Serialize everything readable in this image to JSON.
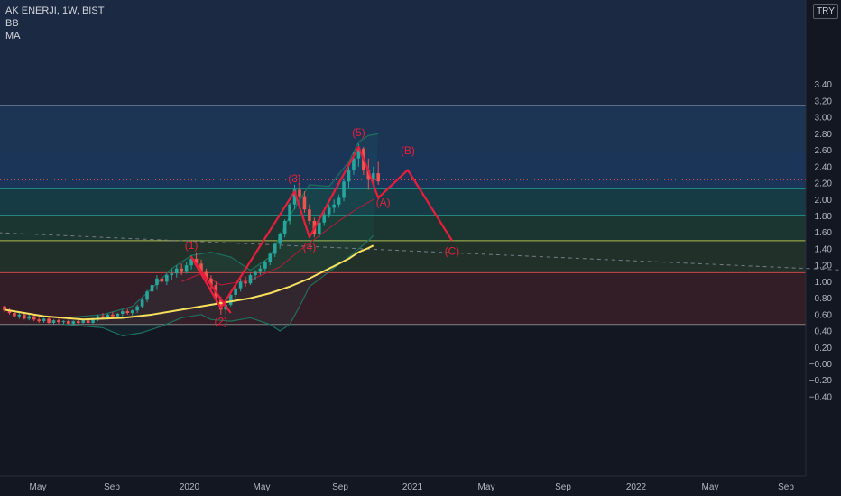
{
  "header": {
    "symbol_line": "AK ENERJI, 1W, BIST",
    "indicators": [
      "BB",
      "MA"
    ],
    "currency": "TRY"
  },
  "colors": {
    "background": "#131722",
    "candle_up": "#26a69a",
    "candle_down": "#ef5350",
    "wave": "#e91e3c",
    "ma": "#f6e05e",
    "bb": "#1f6f5f"
  },
  "chart_data": {
    "type": "candlestick",
    "y_range": [
      -0.4,
      3.4
    ],
    "y_ticks": [
      "3.40",
      "3.20",
      "3.00",
      "2.80",
      "2.60",
      "2.40",
      "2.20",
      "2.00",
      "1.80",
      "1.60",
      "1.40",
      "1.20",
      "1.00",
      "0.80",
      "0.60",
      "0.40",
      "0.20",
      "−0.00",
      "−0.20",
      "−0.40"
    ],
    "x_ticks": [
      "May",
      "Sep",
      "2020",
      "May",
      "Sep",
      "2021",
      "May",
      "Sep",
      "2022",
      "May",
      "Sep"
    ],
    "fib_levels": [
      {
        "value": 3.15,
        "fill": "#1f3b5e"
      },
      {
        "value": 2.58,
        "fill": "#1d3b63"
      },
      {
        "value": 2.13,
        "fill": "#19424a"
      },
      {
        "value": 1.81,
        "fill": "#1d3b33"
      },
      {
        "value": 1.5,
        "fill": "#24362c"
      },
      {
        "value": 1.11,
        "fill": "#3a1f27"
      },
      {
        "value": 0.48,
        "fill": ""
      }
    ],
    "current_price": 2.24,
    "candles": [
      [
        0.7,
        0.71,
        0.63,
        0.65
      ],
      [
        0.65,
        0.68,
        0.6,
        0.62
      ],
      [
        0.62,
        0.64,
        0.57,
        0.58
      ],
      [
        0.58,
        0.62,
        0.55,
        0.6
      ],
      [
        0.6,
        0.61,
        0.54,
        0.55
      ],
      [
        0.55,
        0.6,
        0.53,
        0.58
      ],
      [
        0.58,
        0.59,
        0.52,
        0.54
      ],
      [
        0.54,
        0.56,
        0.5,
        0.52
      ],
      [
        0.52,
        0.56,
        0.5,
        0.55
      ],
      [
        0.55,
        0.57,
        0.49,
        0.5
      ],
      [
        0.5,
        0.54,
        0.48,
        0.53
      ],
      [
        0.53,
        0.55,
        0.49,
        0.51
      ],
      [
        0.51,
        0.53,
        0.48,
        0.52
      ],
      [
        0.52,
        0.54,
        0.48,
        0.49
      ],
      [
        0.49,
        0.53,
        0.47,
        0.52
      ],
      [
        0.52,
        0.55,
        0.49,
        0.5
      ],
      [
        0.5,
        0.54,
        0.49,
        0.53
      ],
      [
        0.53,
        0.55,
        0.49,
        0.5
      ],
      [
        0.5,
        0.56,
        0.49,
        0.55
      ],
      [
        0.55,
        0.6,
        0.52,
        0.58
      ],
      [
        0.58,
        0.62,
        0.54,
        0.56
      ],
      [
        0.56,
        0.61,
        0.54,
        0.6
      ],
      [
        0.6,
        0.63,
        0.56,
        0.58
      ],
      [
        0.58,
        0.62,
        0.55,
        0.61
      ],
      [
        0.61,
        0.66,
        0.58,
        0.64
      ],
      [
        0.64,
        0.67,
        0.6,
        0.62
      ],
      [
        0.62,
        0.66,
        0.59,
        0.65
      ],
      [
        0.65,
        0.72,
        0.62,
        0.7
      ],
      [
        0.7,
        0.8,
        0.68,
        0.78
      ],
      [
        0.78,
        0.9,
        0.75,
        0.88
      ],
      [
        0.88,
        1.0,
        0.85,
        0.96
      ],
      [
        0.96,
        1.08,
        0.9,
        1.04
      ],
      [
        1.04,
        1.12,
        0.98,
        1.0
      ],
      [
        1.0,
        1.1,
        0.96,
        1.08
      ],
      [
        1.08,
        1.16,
        1.02,
        1.1
      ],
      [
        1.1,
        1.2,
        1.05,
        1.16
      ],
      [
        1.16,
        1.22,
        1.08,
        1.12
      ],
      [
        1.12,
        1.24,
        1.1,
        1.2
      ],
      [
        1.2,
        1.32,
        1.15,
        1.28
      ],
      [
        1.28,
        1.36,
        1.18,
        1.22
      ],
      [
        1.22,
        1.27,
        1.08,
        1.12
      ],
      [
        1.12,
        1.16,
        1.0,
        1.04
      ],
      [
        1.04,
        1.08,
        0.9,
        0.96
      ],
      [
        0.96,
        1.0,
        0.72,
        0.78
      ],
      [
        0.78,
        0.82,
        0.6,
        0.66
      ],
      [
        0.66,
        0.74,
        0.6,
        0.72
      ],
      [
        0.72,
        0.86,
        0.7,
        0.84
      ],
      [
        0.84,
        0.96,
        0.8,
        0.92
      ],
      [
        0.92,
        1.04,
        0.88,
        1.0
      ],
      [
        1.0,
        1.06,
        0.94,
        0.98
      ],
      [
        0.98,
        1.1,
        0.96,
        1.08
      ],
      [
        1.08,
        1.14,
        1.02,
        1.12
      ],
      [
        1.12,
        1.2,
        1.08,
        1.16
      ],
      [
        1.16,
        1.26,
        1.12,
        1.24
      ],
      [
        1.24,
        1.36,
        1.2,
        1.34
      ],
      [
        1.34,
        1.48,
        1.3,
        1.46
      ],
      [
        1.46,
        1.6,
        1.4,
        1.58
      ],
      [
        1.58,
        1.76,
        1.54,
        1.74
      ],
      [
        1.74,
        1.96,
        1.7,
        1.94
      ],
      [
        1.94,
        2.18,
        1.88,
        2.12
      ],
      [
        2.12,
        2.3,
        2.0,
        2.04
      ],
      [
        2.04,
        2.1,
        1.84,
        1.88
      ],
      [
        1.88,
        1.94,
        1.7,
        1.74
      ],
      [
        1.74,
        1.78,
        1.54,
        1.58
      ],
      [
        1.58,
        1.76,
        1.54,
        1.72
      ],
      [
        1.72,
        1.86,
        1.68,
        1.82
      ],
      [
        1.82,
        1.94,
        1.78,
        1.9
      ],
      [
        1.9,
        2.0,
        1.84,
        1.94
      ],
      [
        1.94,
        2.06,
        1.9,
        2.02
      ],
      [
        2.02,
        2.26,
        1.98,
        2.22
      ],
      [
        2.22,
        2.4,
        2.14,
        2.36
      ],
      [
        2.36,
        2.58,
        2.3,
        2.5
      ],
      [
        2.5,
        2.68,
        2.4,
        2.62
      ],
      [
        2.62,
        2.64,
        2.3,
        2.36
      ],
      [
        2.36,
        2.5,
        2.12,
        2.24
      ],
      [
        2.24,
        2.4,
        2.16,
        2.32
      ],
      [
        2.32,
        2.46,
        2.18,
        2.22
      ]
    ],
    "ma": [
      [
        0,
        0.66
      ],
      [
        8,
        0.58
      ],
      [
        16,
        0.54
      ],
      [
        24,
        0.56
      ],
      [
        30,
        0.6
      ],
      [
        36,
        0.66
      ],
      [
        42,
        0.72
      ],
      [
        46,
        0.76
      ],
      [
        50,
        0.8
      ],
      [
        54,
        0.86
      ],
      [
        58,
        0.94
      ],
      [
        62,
        1.04
      ],
      [
        66,
        1.16
      ],
      [
        70,
        1.28
      ],
      [
        72,
        1.36
      ],
      [
        74,
        1.41
      ],
      [
        75,
        1.44
      ]
    ],
    "bb_upper": [
      [
        12,
        0.56
      ],
      [
        20,
        0.6
      ],
      [
        26,
        0.7
      ],
      [
        30,
        0.92
      ],
      [
        34,
        1.16
      ],
      [
        38,
        1.32
      ],
      [
        42,
        1.36
      ],
      [
        46,
        1.3
      ],
      [
        50,
        1.14
      ],
      [
        54,
        1.3
      ],
      [
        58,
        1.8
      ],
      [
        62,
        2.18
      ],
      [
        66,
        2.16
      ],
      [
        70,
        2.46
      ],
      [
        72,
        2.7
      ],
      [
        74,
        2.78
      ],
      [
        76,
        2.8
      ]
    ],
    "bb_lower": [
      [
        12,
        0.48
      ],
      [
        20,
        0.44
      ],
      [
        24,
        0.34
      ],
      [
        28,
        0.38
      ],
      [
        32,
        0.46
      ],
      [
        36,
        0.56
      ],
      [
        40,
        0.6
      ],
      [
        42,
        0.54
      ],
      [
        46,
        0.52
      ],
      [
        50,
        0.56
      ],
      [
        54,
        0.48
      ],
      [
        56,
        0.4
      ],
      [
        58,
        0.48
      ],
      [
        60,
        0.7
      ],
      [
        62,
        0.94
      ],
      [
        66,
        1.12
      ],
      [
        70,
        1.3
      ],
      [
        74,
        1.5
      ],
      [
        75,
        1.56
      ]
    ],
    "bb_basis": [
      [
        36,
        1.0
      ],
      [
        40,
        1.1
      ],
      [
        44,
        0.96
      ],
      [
        50,
        1.02
      ],
      [
        56,
        1.18
      ],
      [
        60,
        1.38
      ],
      [
        64,
        1.56
      ],
      [
        68,
        1.74
      ],
      [
        72,
        1.9
      ],
      [
        75,
        2.0
      ]
    ],
    "trendline": [
      [
        -10,
        1.62
      ],
      [
        175,
        1.13
      ]
    ],
    "wave_path": [
      [
        46,
        0.62
      ],
      [
        38,
        1.3
      ],
      [
        44,
        0.68
      ],
      [
        59,
        2.1
      ],
      [
        62,
        1.54
      ],
      [
        72,
        2.64
      ],
      [
        74,
        2.35
      ],
      [
        76,
        2.02
      ],
      [
        82,
        2.36
      ],
      [
        91,
        1.5
      ]
    ],
    "wave_labels": [
      {
        "text": "(1)",
        "x": 38,
        "y": 1.4
      },
      {
        "text": "(2)",
        "x": 44,
        "y": 0.47
      },
      {
        "text": "(3)",
        "x": 59,
        "y": 2.21
      },
      {
        "text": "(4)",
        "x": 62,
        "y": 1.38
      },
      {
        "text": "(5)",
        "x": 72,
        "y": 2.77
      },
      {
        "text": "(A)",
        "x": 77,
        "y": 1.92
      },
      {
        "text": "(B)",
        "x": 82,
        "y": 2.55
      },
      {
        "text": "(C)",
        "x": 91,
        "y": 1.33
      }
    ]
  }
}
